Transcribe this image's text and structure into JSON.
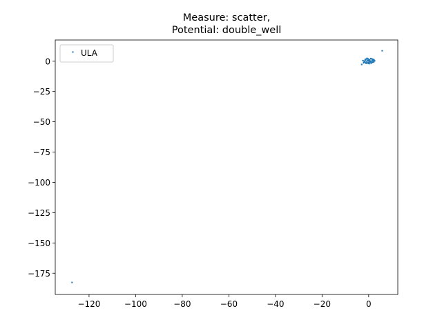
{
  "chart_data": {
    "type": "scatter",
    "title": [
      "Measure: scatter,",
      "Potential: double_well"
    ],
    "xlabel": "",
    "ylabel": "",
    "xlim": [
      -134.5,
      12.5
    ],
    "ylim": [
      -192.5,
      17.5
    ],
    "xticks": [
      -120,
      -100,
      -80,
      -60,
      -40,
      -20,
      0
    ],
    "xtick_labels": [
      "−120",
      "−100",
      "−80",
      "−60",
      "−40",
      "−20",
      "0"
    ],
    "yticks": [
      0,
      -25,
      -50,
      -75,
      -100,
      -125,
      -150,
      -175
    ],
    "ytick_labels": [
      "0",
      "−25",
      "−50",
      "−75",
      "−100",
      "−125",
      "−150",
      "−175"
    ],
    "grid": false,
    "legend_position": "upper-left",
    "series": [
      {
        "name": "ULA",
        "color": "#1f77b4",
        "points": [
          [
            -127.3,
            -182.6
          ],
          [
            5.8,
            8.6
          ],
          [
            -3.0,
            -2.7
          ],
          [
            -2.2,
            -1.4
          ],
          [
            -1.6,
            -0.6
          ],
          [
            -1.3,
            0.9
          ],
          [
            -1.0,
            1.8
          ],
          [
            -0.7,
            2.4
          ],
          [
            -0.4,
            -1.2
          ],
          [
            -0.1,
            0.3
          ],
          [
            0.2,
            -0.8
          ],
          [
            0.5,
            1.4
          ],
          [
            0.8,
            0.1
          ],
          [
            1.1,
            -0.3
          ],
          [
            1.4,
            1.9
          ],
          [
            1.7,
            -0.9
          ],
          [
            2.0,
            0.6
          ],
          [
            2.3,
            1.2
          ],
          [
            -1.9,
            0.2
          ],
          [
            -1.1,
            -1.8
          ],
          [
            -0.3,
            2.0
          ],
          [
            0.4,
            -2.0
          ],
          [
            1.2,
            -1.6
          ],
          [
            1.9,
            -0.2
          ],
          [
            -2.5,
            0.5
          ],
          [
            2.6,
            0.3
          ],
          [
            -0.8,
            -0.4
          ],
          [
            0.0,
            1.0
          ],
          [
            0.9,
            2.2
          ],
          [
            -1.5,
            1.5
          ],
          [
            1.5,
            0.8
          ],
          [
            -0.5,
            0.7
          ],
          [
            0.6,
            -0.5
          ],
          [
            -2.0,
            -0.9
          ],
          [
            2.2,
            -0.6
          ],
          [
            -1.2,
            -1.1
          ],
          [
            0.3,
            0.4
          ],
          [
            1.0,
            -1.3
          ],
          [
            -0.2,
            -1.9
          ],
          [
            1.8,
            1.6
          ]
        ]
      }
    ]
  }
}
